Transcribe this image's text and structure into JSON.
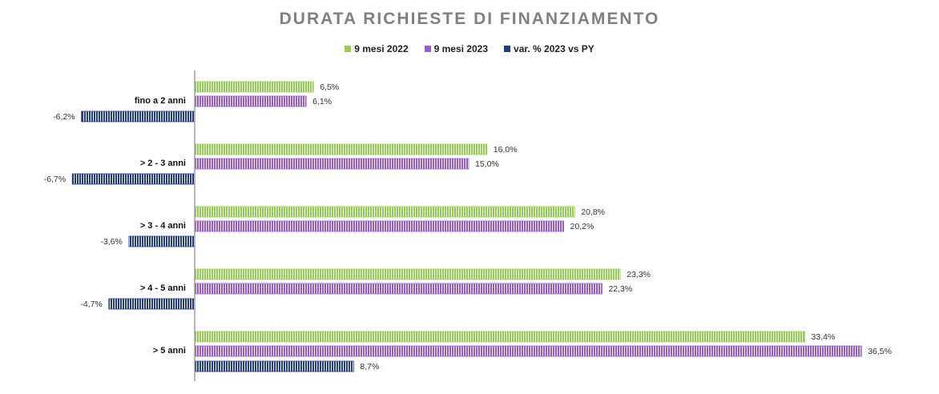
{
  "chart_data": {
    "type": "bar",
    "orientation": "horizontal",
    "title": "DURATA RICHIESTE DI FINANZIAMENTO",
    "categories": [
      "fino a 2 anni",
      "> 2 - 3 anni",
      "> 3 - 4 anni",
      "> 4 - 5 anni",
      "> 5 anni"
    ],
    "series": [
      {
        "name": "9 mesi 2022",
        "values": [
          6.5,
          16.0,
          20.8,
          23.3,
          33.4
        ],
        "labels": [
          "6,5%",
          "16,0%",
          "20,8%",
          "23,3%",
          "33,4%"
        ],
        "color": "#92d050"
      },
      {
        "name": "9 mesi 2023",
        "values": [
          6.1,
          15.0,
          20.2,
          22.3,
          36.5
        ],
        "labels": [
          "6,1%",
          "15,0%",
          "20,2%",
          "22,3%",
          "36,5%"
        ],
        "color": "#9b59d0"
      },
      {
        "name": "var. % 2023 vs PY",
        "values": [
          -6.2,
          -6.7,
          -3.6,
          -4.7,
          8.7
        ],
        "labels": [
          "-6,2%",
          "-6,7%",
          "-3,6%",
          "-4,7%",
          "8,7%"
        ],
        "color": "#203a8c"
      }
    ],
    "legend_position": "top",
    "grid": false
  }
}
